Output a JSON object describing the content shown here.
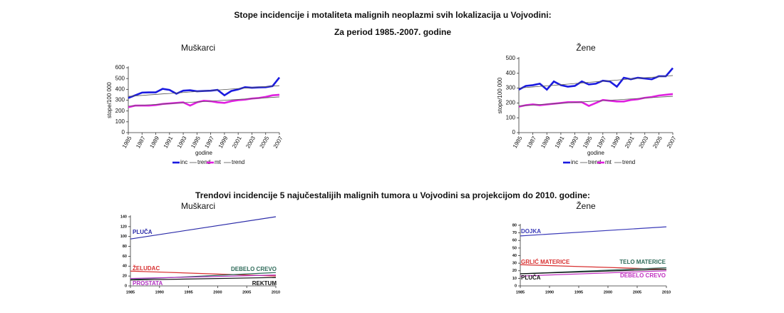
{
  "headings": {
    "title": "Stope incidencije i motaliteta malignih neoplazmi svih lokalizacija u Vojvodini:",
    "subtitle": "Za period 1985.-2007. godine",
    "section": "Trendovi incidencije 5 najučestalijih malignih tumora u Vojvodini sa projekcijom do 2010. godine:"
  },
  "chart_data": [
    {
      "type": "line",
      "title": "Muškarci",
      "x_label": "godine",
      "y_label": "stope/100 000",
      "x": [
        1985,
        1986,
        1987,
        1988,
        1989,
        1990,
        1991,
        1992,
        1993,
        1994,
        1995,
        1996,
        1997,
        1998,
        1999,
        2000,
        2001,
        2002,
        2003,
        2004,
        2005,
        2006,
        2007
      ],
      "xlim": [
        1985,
        2007
      ],
      "xticks": [
        1985,
        1987,
        1989,
        1991,
        1993,
        1995,
        1997,
        1999,
        2001,
        2003,
        2005,
        2007
      ],
      "ylim": [
        0,
        600
      ],
      "yticks": [
        0,
        100,
        200,
        300,
        400,
        500,
        600
      ],
      "legend": "bottom",
      "series": [
        {
          "name": "inc",
          "color": "#1a1ae0",
          "values": [
            320,
            345,
            370,
            372,
            372,
            405,
            395,
            360,
            388,
            392,
            382,
            385,
            388,
            395,
            345,
            385,
            400,
            420,
            415,
            418,
            420,
            430,
            510
          ]
        },
        {
          "name": "trend",
          "color": "#555555",
          "values": [
            335,
            340,
            344,
            349,
            353,
            358,
            362,
            367,
            371,
            376,
            380,
            385,
            389,
            394,
            398,
            403,
            407,
            412,
            416,
            421,
            425,
            430,
            434
          ]
        },
        {
          "name": "mt",
          "color": "#e020e0",
          "values": [
            235,
            250,
            250,
            250,
            255,
            265,
            270,
            275,
            280,
            250,
            280,
            295,
            290,
            280,
            275,
            290,
            300,
            305,
            315,
            320,
            330,
            345,
            350
          ]
        },
        {
          "name": "trend",
          "color": "#555555",
          "values": [
            245,
            249,
            253,
            257,
            260,
            264,
            268,
            272,
            276,
            280,
            284,
            287,
            291,
            295,
            299,
            303,
            307,
            311,
            314,
            318,
            322,
            326,
            330
          ]
        }
      ]
    },
    {
      "type": "line",
      "title": "Žene",
      "x_label": "godine",
      "y_label": "stope/100 000",
      "x": [
        1985,
        1986,
        1987,
        1988,
        1989,
        1990,
        1991,
        1992,
        1993,
        1994,
        1995,
        1996,
        1997,
        1998,
        1999,
        2000,
        2001,
        2002,
        2003,
        2004,
        2005,
        2006,
        2007
      ],
      "xlim": [
        1985,
        2007
      ],
      "xticks": [
        1985,
        1987,
        1989,
        1991,
        1993,
        1995,
        1997,
        1999,
        2001,
        2003,
        2005,
        2007
      ],
      "ylim": [
        0,
        500
      ],
      "yticks": [
        0,
        100,
        200,
        300,
        400,
        500
      ],
      "legend": "bottom",
      "series": [
        {
          "name": "inc",
          "color": "#1a1ae0",
          "values": [
            290,
            315,
            320,
            330,
            290,
            345,
            320,
            310,
            315,
            345,
            325,
            330,
            350,
            345,
            310,
            370,
            360,
            370,
            365,
            360,
            380,
            380,
            435
          ]
        },
        {
          "name": "trend",
          "color": "#555555",
          "values": [
            300,
            304,
            308,
            312,
            315,
            319,
            323,
            327,
            331,
            335,
            339,
            343,
            346,
            350,
            354,
            358,
            362,
            366,
            370,
            373,
            377,
            381,
            385
          ]
        },
        {
          "name": "mt",
          "color": "#e020e0",
          "values": [
            175,
            185,
            190,
            185,
            190,
            195,
            200,
            205,
            205,
            205,
            180,
            200,
            220,
            215,
            210,
            210,
            220,
            225,
            235,
            240,
            250,
            255,
            260
          ]
        },
        {
          "name": "trend",
          "color": "#555555",
          "values": [
            180,
            183,
            186,
            189,
            192,
            195,
            198,
            201,
            204,
            207,
            210,
            213,
            215,
            218,
            221,
            224,
            227,
            230,
            233,
            236,
            239,
            242,
            245
          ]
        }
      ]
    },
    {
      "type": "line",
      "title": "Muškarci",
      "x": [
        1985,
        2010
      ],
      "xlim": [
        1985,
        2010
      ],
      "xticks": [
        1985,
        1990,
        1995,
        2000,
        2005,
        2010
      ],
      "ylim": [
        0,
        140
      ],
      "yticks": [
        0,
        20,
        40,
        60,
        80,
        100,
        120,
        140
      ],
      "series": [
        {
          "name": "PLUČA",
          "color": "#2a2aa8",
          "values": [
            95,
            140
          ]
        },
        {
          "name": "ŽELUDAC",
          "color": "#d83030",
          "values": [
            30,
            20
          ]
        },
        {
          "name": "DEBELO CREVO",
          "color": "#2f6b5a",
          "values": [
            13,
            27
          ]
        },
        {
          "name": "PROSTATA",
          "color": "#b030c0",
          "values": [
            15,
            22
          ]
        },
        {
          "name": "REKTUM",
          "color": "#111111",
          "values": [
            12,
            17
          ]
        }
      ]
    },
    {
      "type": "line",
      "title": "Žene",
      "x": [
        1985,
        2010
      ],
      "xlim": [
        1985,
        2010
      ],
      "xticks": [
        1985,
        1990,
        1995,
        2000,
        2005,
        2010
      ],
      "ylim": [
        0,
        80
      ],
      "yticks": [
        0,
        10,
        20,
        30,
        40,
        50,
        60,
        70,
        80
      ],
      "series": [
        {
          "name": "DOJKA",
          "color": "#3a3ab8",
          "values": [
            66,
            78
          ]
        },
        {
          "name": "GRLIĆ MATERICE",
          "color": "#d83030",
          "values": [
            28,
            22
          ]
        },
        {
          "name": "TELO MATERICE",
          "color": "#2f6b5a",
          "values": [
            16,
            24
          ]
        },
        {
          "name": "DEBELO CREVO",
          "color": "#c030c0",
          "values": [
            13,
            20
          ]
        },
        {
          "name": "PLUČA",
          "color": "#111111",
          "values": [
            16,
            22
          ]
        }
      ]
    }
  ]
}
